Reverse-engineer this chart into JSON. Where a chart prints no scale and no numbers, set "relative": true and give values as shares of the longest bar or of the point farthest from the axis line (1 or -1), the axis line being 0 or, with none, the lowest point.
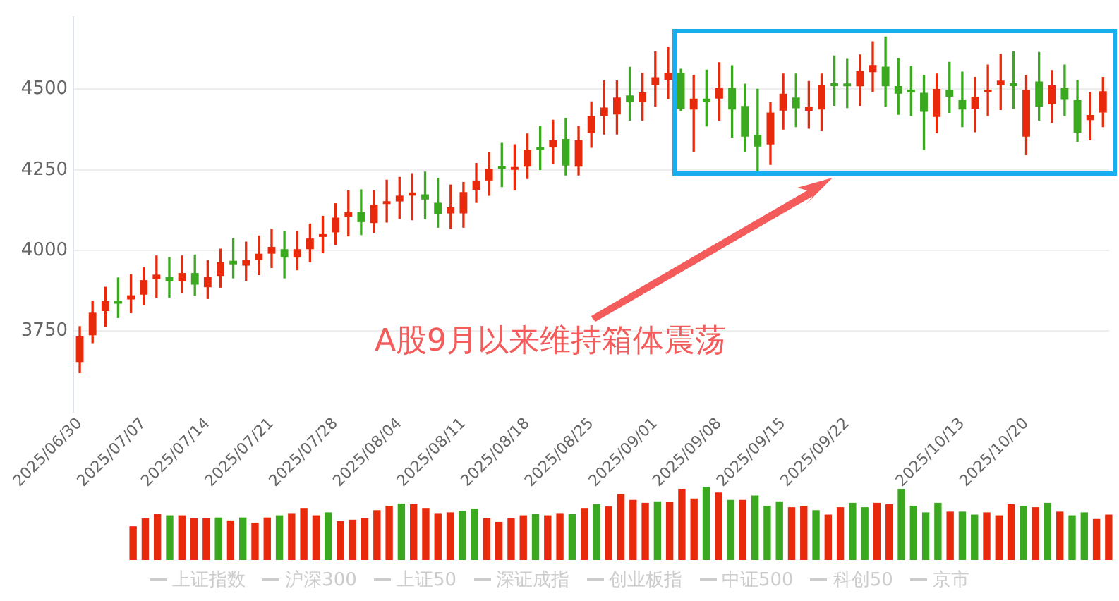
{
  "chart_data": [
    {
      "type": "candlestick",
      "categories": [
        "2025/06/30",
        null,
        null,
        null,
        null,
        "2025/07/07",
        null,
        null,
        null,
        null,
        "2025/07/14",
        null,
        null,
        null,
        null,
        "2025/07/21",
        null,
        null,
        null,
        null,
        "2025/07/28",
        null,
        null,
        null,
        null,
        "2025/08/04",
        null,
        null,
        null,
        null,
        "2025/08/11",
        null,
        null,
        null,
        null,
        "2025/08/18",
        null,
        null,
        null,
        null,
        "2025/08/25",
        null,
        null,
        null,
        null,
        "2025/09/01",
        null,
        null,
        null,
        null,
        "2025/09/08",
        null,
        null,
        null,
        null,
        "2025/09/15",
        null,
        null,
        null,
        null,
        "2025/09/22",
        null,
        null,
        null,
        null,
        null,
        null,
        null,
        null,
        "2025/10/13",
        null,
        null,
        null,
        null,
        "2025/10/20",
        null,
        null,
        null,
        null,
        null,
        null
      ],
      "series": [
        {
          "type": "candlestick",
          "ohlc": [
            [
              3654,
              3764,
              3621,
              3734
            ],
            [
              3737,
              3843,
              3714,
              3807
            ],
            [
              3812,
              3886,
              3764,
              3843
            ],
            [
              3843,
              3915,
              3792,
              3835
            ],
            [
              3848,
              3925,
              3807,
              3861
            ],
            [
              3863,
              3947,
              3832,
              3908
            ],
            [
              3911,
              3983,
              3855,
              3925
            ],
            [
              3918,
              3978,
              3855,
              3904
            ],
            [
              3904,
              3983,
              3868,
              3930
            ],
            [
              3930,
              3986,
              3861,
              3894
            ],
            [
              3886,
              3968,
              3851,
              3918
            ],
            [
              3921,
              4004,
              3886,
              3964
            ],
            [
              3968,
              4037,
              3915,
              3957
            ],
            [
              3953,
              4026,
              3907,
              3971
            ],
            [
              3971,
              4045,
              3925,
              3990
            ],
            [
              3990,
              4066,
              3947,
              4011
            ],
            [
              4004,
              4059,
              3915,
              3978
            ],
            [
              3978,
              4059,
              3940,
              4004
            ],
            [
              4004,
              4082,
              3965,
              4037
            ],
            [
              4042,
              4106,
              3993,
              4049
            ],
            [
              4056,
              4145,
              4019,
              4102
            ],
            [
              4105,
              4185,
              4045,
              4119
            ],
            [
              4119,
              4188,
              4049,
              4088
            ],
            [
              4085,
              4185,
              4056,
              4142
            ],
            [
              4144,
              4218,
              4088,
              4149
            ],
            [
              4152,
              4227,
              4099,
              4170
            ],
            [
              4170,
              4238,
              4095,
              4180
            ],
            [
              4174,
              4243,
              4098,
              4158
            ],
            [
              4148,
              4224,
              4072,
              4112
            ],
            [
              4115,
              4203,
              4068,
              4134
            ],
            [
              4115,
              4211,
              4072,
              4181
            ],
            [
              4188,
              4270,
              4149,
              4217
            ],
            [
              4217,
              4303,
              4171,
              4253
            ],
            [
              4256,
              4332,
              4198,
              4253
            ],
            [
              4250,
              4328,
              4188,
              4254
            ],
            [
              4260,
              4361,
              4223,
              4313
            ],
            [
              4318,
              4385,
              4251,
              4312
            ],
            [
              4320,
              4404,
              4270,
              4342
            ],
            [
              4346,
              4410,
              4234,
              4263
            ],
            [
              4260,
              4385,
              4234,
              4342
            ],
            [
              4364,
              4461,
              4320,
              4417
            ],
            [
              4417,
              4526,
              4361,
              4443
            ],
            [
              4422,
              4526,
              4361,
              4474
            ],
            [
              4481,
              4568,
              4404,
              4460
            ],
            [
              4460,
              4550,
              4404,
              4490
            ],
            [
              4514,
              4616,
              4447,
              4537
            ],
            [
              4529,
              4631,
              4471,
              4550
            ],
            [
              4550,
              4562,
              4433,
              4440
            ],
            [
              4437,
              4543,
              4306,
              4471
            ],
            [
              4471,
              4559,
              4386,
              4461
            ],
            [
              4471,
              4582,
              4404,
              4503
            ],
            [
              4503,
              4573,
              4351,
              4437
            ],
            [
              4448,
              4516,
              4306,
              4353
            ],
            [
              4359,
              4500,
              4238,
              4322
            ],
            [
              4329,
              4458,
              4267,
              4428
            ],
            [
              4434,
              4547,
              4376,
              4486
            ],
            [
              4474,
              4547,
              4384,
              4441
            ],
            [
              4433,
              4524,
              4379,
              4445
            ],
            [
              4437,
              4547,
              4371,
              4514
            ],
            [
              4513,
              4603,
              4450,
              4510
            ],
            [
              4512,
              4595,
              4443,
              4509
            ],
            [
              4509,
              4606,
              4450,
              4557
            ],
            [
              4553,
              4647,
              4493,
              4575
            ],
            [
              4570,
              4662,
              4447,
              4509
            ],
            [
              4510,
              4596,
              4422,
              4486
            ],
            [
              4493,
              4570,
              4418,
              4490
            ],
            [
              4489,
              4543,
              4313,
              4430
            ],
            [
              4414,
              4547,
              4365,
              4501
            ],
            [
              4497,
              4583,
              4428,
              4477
            ],
            [
              4466,
              4553,
              4384,
              4437
            ],
            [
              4440,
              4537,
              4368,
              4477
            ],
            [
              4490,
              4575,
              4418,
              4497
            ],
            [
              4513,
              4608,
              4437,
              4527
            ],
            [
              4513,
              4616,
              4440,
              4510
            ],
            [
              4353,
              4543,
              4297,
              4497
            ],
            [
              4524,
              4614,
              4404,
              4445
            ],
            [
              4453,
              4558,
              4397,
              4512
            ],
            [
              4503,
              4575,
              4418,
              4467
            ],
            [
              4466,
              4527,
              4338,
              4365
            ],
            [
              4404,
              4490,
              4343,
              4420
            ],
            [
              4428,
              4537,
              4384,
              4494
            ]
          ],
          "colors": [
            "#e8290b",
            "#e8290b",
            "#e8290b",
            "#3ba91f",
            "#e8290b",
            "#e8290b",
            "#e8290b",
            "#3ba91f",
            "#e8290b",
            "#3ba91f",
            "#e8290b",
            "#e8290b",
            "#3ba91f",
            "#e8290b",
            "#e8290b",
            "#e8290b",
            "#3ba91f",
            "#e8290b",
            "#e8290b",
            "#e8290b",
            "#e8290b",
            "#e8290b",
            "#3ba91f",
            "#e8290b",
            "#e8290b",
            "#e8290b",
            "#e8290b",
            "#3ba91f",
            "#3ba91f",
            "#e8290b",
            "#e8290b",
            "#e8290b",
            "#e8290b",
            "#3ba91f",
            "#e8290b",
            "#e8290b",
            "#3ba91f",
            "#e8290b",
            "#3ba91f",
            "#e8290b",
            "#e8290b",
            "#e8290b",
            "#e8290b",
            "#3ba91f",
            "#e8290b",
            "#e8290b",
            "#e8290b",
            "#3ba91f",
            "#e8290b",
            "#3ba91f",
            "#e8290b",
            "#3ba91f",
            "#3ba91f",
            "#3ba91f",
            "#e8290b",
            "#e8290b",
            "#3ba91f",
            "#e8290b",
            "#e8290b",
            "#3ba91f",
            "#3ba91f",
            "#e8290b",
            "#e8290b",
            "#3ba91f",
            "#3ba91f",
            "#3ba91f",
            "#3ba91f",
            "#e8290b",
            "#3ba91f",
            "#3ba91f",
            "#e8290b",
            "#e8290b",
            "#e8290b",
            "#3ba91f",
            "#e8290b",
            "#3ba91f",
            "#e8290b",
            "#3ba91f",
            "#3ba91f",
            "#e8290b",
            "#e8290b"
          ]
        },
        {
          "type": "line",
          "name": "上证指数",
          "color": "#cccccc",
          "values": [
            null,
            null,
            null,
            null,
            null,
            null,
            null,
            null,
            null,
            null,
            null,
            null,
            null,
            null,
            null,
            null,
            null,
            null,
            null,
            null,
            null,
            null,
            null,
            null,
            null,
            null,
            null,
            null,
            null,
            null,
            null,
            null,
            null,
            null,
            null,
            null,
            null,
            null,
            null,
            null,
            null,
            null,
            null,
            null,
            null,
            null,
            null,
            null,
            null,
            null,
            null,
            null,
            null,
            null,
            null,
            null,
            null,
            null,
            null,
            null,
            null,
            null,
            null,
            null,
            null,
            null,
            null,
            null,
            null,
            null,
            null,
            null,
            null,
            null,
            null,
            null,
            null,
            null,
            null,
            null,
            null
          ]
        },
        {
          "type": "line",
          "name": "沪深300",
          "color": "#cccccc",
          "values": [
            null,
            null,
            null,
            null,
            null,
            null,
            null,
            null,
            null,
            null,
            null,
            null,
            null,
            null,
            null,
            null,
            null,
            null,
            null,
            null,
            null,
            null,
            null,
            null,
            null,
            null,
            null,
            null,
            null,
            null,
            null,
            null,
            null,
            null,
            null,
            null,
            null,
            null,
            null,
            null,
            null,
            null,
            null,
            null,
            null,
            null,
            null,
            null,
            null,
            null,
            null,
            null,
            null,
            null,
            null,
            null,
            null,
            null,
            null,
            null,
            null,
            null,
            null,
            null,
            null,
            null,
            null,
            null,
            null,
            null,
            null,
            null,
            null,
            null,
            null,
            null,
            null,
            null,
            null,
            null,
            null
          ]
        },
        {
          "type": "line",
          "name": "上证50",
          "color": "#cccccc",
          "values": [
            null,
            null,
            null,
            null,
            null,
            null,
            null,
            null,
            null,
            null,
            null,
            null,
            null,
            null,
            null,
            null,
            null,
            null,
            null,
            null,
            null,
            null,
            null,
            null,
            null,
            null,
            null,
            null,
            null,
            null,
            null,
            null,
            null,
            null,
            null,
            null,
            null,
            null,
            null,
            null,
            null,
            null,
            null,
            null,
            null,
            null,
            null,
            null,
            null,
            null,
            null,
            null,
            null,
            null,
            null,
            null,
            null,
            null,
            null,
            null,
            null,
            null,
            null,
            null,
            null,
            null,
            null,
            null,
            null,
            null,
            null,
            null,
            null,
            null,
            null,
            null,
            null,
            null,
            null,
            null,
            null
          ]
        },
        {
          "type": "line",
          "name": "深证成指",
          "color": "#cccccc",
          "values": [
            null,
            null,
            null,
            null,
            null,
            null,
            null,
            null,
            null,
            null,
            null,
            null,
            null,
            null,
            null,
            null,
            null,
            null,
            null,
            null,
            null,
            null,
            null,
            null,
            null,
            null,
            null,
            null,
            null,
            null,
            null,
            null,
            null,
            null,
            null,
            null,
            null,
            null,
            null,
            null,
            null,
            null,
            null,
            null,
            null,
            null,
            null,
            null,
            null,
            null,
            null,
            null,
            null,
            null,
            null,
            null,
            null,
            null,
            null,
            null,
            null,
            null,
            null,
            null,
            null,
            null,
            null,
            null,
            null,
            null,
            null,
            null,
            null,
            null,
            null,
            null,
            null,
            null,
            null,
            null,
            null
          ]
        },
        {
          "type": "line",
          "name": "创业板指",
          "color": "#cccccc",
          "values": [
            null,
            null,
            null,
            null,
            null,
            null,
            null,
            null,
            null,
            null,
            null,
            null,
            null,
            null,
            null,
            null,
            null,
            null,
            null,
            null,
            null,
            null,
            null,
            null,
            null,
            null,
            null,
            null,
            null,
            null,
            null,
            null,
            null,
            null,
            null,
            null,
            null,
            null,
            null,
            null,
            null,
            null,
            null,
            null,
            null,
            null,
            null,
            null,
            null,
            null,
            null,
            null,
            null,
            null,
            null,
            null,
            null,
            null,
            null,
            null,
            null,
            null,
            null,
            null,
            null,
            null,
            null,
            null,
            null,
            null,
            null,
            null,
            null,
            null,
            null,
            null,
            null,
            null,
            null,
            null,
            null
          ]
        },
        {
          "type": "line",
          "name": "中证500",
          "color": "#cccccc",
          "values": [
            null,
            null,
            null,
            null,
            null,
            null,
            null,
            null,
            null,
            null,
            null,
            null,
            null,
            null,
            null,
            null,
            null,
            null,
            null,
            null,
            null,
            null,
            null,
            null,
            null,
            null,
            null,
            null,
            null,
            null,
            null,
            null,
            null,
            null,
            null,
            null,
            null,
            null,
            null,
            null,
            null,
            null,
            null,
            null,
            null,
            null,
            null,
            null,
            null,
            null,
            null,
            null,
            null,
            null,
            null,
            null,
            null,
            null,
            null,
            null,
            null,
            null,
            null,
            null,
            null,
            null,
            null,
            null,
            null,
            null,
            null,
            null,
            null,
            null,
            null,
            null,
            null,
            null,
            null,
            null,
            null
          ]
        },
        {
          "type": "line",
          "name": "科创50",
          "color": "#cccccc",
          "values": [
            null,
            null,
            null,
            null,
            null,
            null,
            null,
            null,
            null,
            null,
            null,
            null,
            null,
            null,
            null,
            null,
            null,
            null,
            null,
            null,
            null,
            null,
            null,
            null,
            null,
            null,
            null,
            null,
            null,
            null,
            null,
            null,
            null,
            null,
            null,
            null,
            null,
            null,
            null,
            null,
            null,
            null,
            null,
            null,
            null,
            null,
            null,
            null,
            null,
            null,
            null,
            null,
            null,
            null,
            null,
            null,
            null,
            null,
            null,
            null,
            null,
            null,
            null,
            null,
            null,
            null,
            null,
            null,
            null,
            null,
            null,
            null,
            null,
            null,
            null,
            null,
            null,
            null,
            null,
            null,
            null
          ]
        },
        {
          "type": "line",
          "name": "京市",
          "color": "#cccccc",
          "values": [
            null,
            null,
            null,
            null,
            null,
            null,
            null,
            null,
            null,
            null,
            null,
            null,
            null,
            null,
            null,
            null,
            null,
            null,
            null,
            null,
            null,
            null,
            null,
            null,
            null,
            null,
            null,
            null,
            null,
            null,
            null,
            null,
            null,
            null,
            null,
            null,
            null,
            null,
            null,
            null,
            null,
            null,
            null,
            null,
            null,
            null,
            null,
            null,
            null,
            null,
            null,
            null,
            null,
            null,
            null,
            null,
            null,
            null,
            null,
            null,
            null,
            null,
            null,
            null,
            null,
            null,
            null,
            null,
            null,
            null,
            null,
            null,
            null,
            null,
            null,
            null,
            null,
            null,
            null,
            null,
            null
          ]
        }
      ],
      "ylim": [
        3500,
        4725
      ],
      "yticks": [
        3750,
        4000,
        4250,
        4500
      ],
      "grid": "y",
      "legend": "bottom",
      "annotations": [
        "A股9月以来维持箱体震荡"
      ]
    },
    {
      "type": "bar",
      "relative": true,
      "categories": [
        null,
        null,
        null,
        null,
        null,
        null,
        null,
        null,
        null,
        null,
        null,
        null,
        null,
        null,
        null,
        null,
        null,
        null,
        null,
        null,
        null,
        null,
        null,
        null,
        null,
        null,
        null,
        null,
        null,
        null,
        null,
        null,
        null,
        null,
        null,
        null,
        null,
        null,
        null,
        null,
        null,
        null,
        null,
        null,
        null,
        null,
        null,
        null,
        null,
        null,
        null,
        null,
        null,
        null,
        null,
        null,
        null,
        null,
        null,
        null,
        null,
        null,
        null,
        null,
        null,
        null,
        null,
        null,
        null,
        null,
        null,
        null,
        null,
        null,
        null,
        null,
        null,
        null,
        null,
        null,
        null
      ],
      "values": [
        0.46,
        0.57,
        0.63,
        0.61,
        0.61,
        0.57,
        0.57,
        0.58,
        0.54,
        0.58,
        0.51,
        0.58,
        0.61,
        0.64,
        0.71,
        0.61,
        0.65,
        0.53,
        0.55,
        0.57,
        0.68,
        0.74,
        0.77,
        0.76,
        0.71,
        0.64,
        0.65,
        0.67,
        0.7,
        0.57,
        0.52,
        0.57,
        0.61,
        0.63,
        0.61,
        0.64,
        0.63,
        0.71,
        0.76,
        0.73,
        0.9,
        0.82,
        0.78,
        0.8,
        0.79,
        0.97,
        0.84,
        1,
        0.92,
        0.82,
        0.82,
        0.88,
        0.74,
        0.8,
        0.72,
        0.74,
        0.68,
        0.62,
        0.72,
        0.78,
        0.72,
        0.78,
        0.76,
        0.97,
        0.74,
        0.65,
        0.78,
        0.66,
        0.66,
        0.62,
        0.65,
        0.61,
        0.76,
        0.74,
        0.72,
        0.78,
        0.66,
        0.61,
        0.65,
        0.56,
        0.62
      ],
      "colors": [
        "#e8290b",
        "#e8290b",
        "#e8290b",
        "#3ba91f",
        "#e8290b",
        "#e8290b",
        "#e8290b",
        "#3ba91f",
        "#e8290b",
        "#3ba91f",
        "#e8290b",
        "#e8290b",
        "#3ba91f",
        "#e8290b",
        "#e8290b",
        "#e8290b",
        "#3ba91f",
        "#e8290b",
        "#e8290b",
        "#e8290b",
        "#e8290b",
        "#e8290b",
        "#3ba91f",
        "#e8290b",
        "#e8290b",
        "#e8290b",
        "#e8290b",
        "#3ba91f",
        "#3ba91f",
        "#e8290b",
        "#e8290b",
        "#e8290b",
        "#e8290b",
        "#3ba91f",
        "#e8290b",
        "#e8290b",
        "#3ba91f",
        "#e8290b",
        "#3ba91f",
        "#e8290b",
        "#e8290b",
        "#e8290b",
        "#e8290b",
        "#3ba91f",
        "#e8290b",
        "#e8290b",
        "#e8290b",
        "#3ba91f",
        "#e8290b",
        "#3ba91f",
        "#e8290b",
        "#3ba91f",
        "#3ba91f",
        "#3ba91f",
        "#e8290b",
        "#e8290b",
        "#3ba91f",
        "#e8290b",
        "#e8290b",
        "#3ba91f",
        "#3ba91f",
        "#e8290b",
        "#e8290b",
        "#3ba91f",
        "#3ba91f",
        "#3ba91f",
        "#3ba91f",
        "#e8290b",
        "#3ba91f",
        "#3ba91f",
        "#e8290b",
        "#e8290b",
        "#e8290b",
        "#3ba91f",
        "#e8290b",
        "#3ba91f",
        "#e8290b",
        "#3ba91f",
        "#3ba91f",
        "#e8290b",
        "#e8290b"
      ]
    }
  ]
}
